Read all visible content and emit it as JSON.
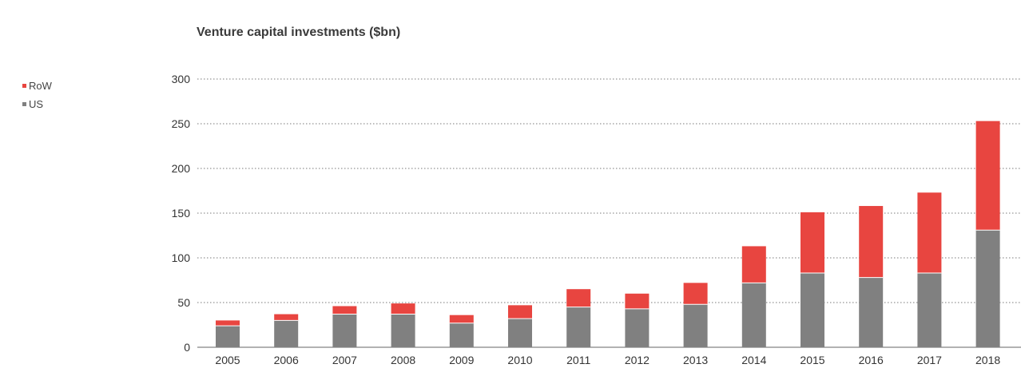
{
  "chart_data": {
    "type": "bar",
    "stacked": true,
    "title": "Venture capital investments ($bn)",
    "xlabel": "",
    "ylabel": "",
    "categories": [
      "2005",
      "2006",
      "2007",
      "2008",
      "2009",
      "2010",
      "2011",
      "2012",
      "2013",
      "2014",
      "2015",
      "2016",
      "2017",
      "2018"
    ],
    "series": [
      {
        "name": "US",
        "color": "#808080",
        "values": [
          24,
          30,
          37,
          37,
          27,
          32,
          45,
          43,
          48,
          72,
          83,
          78,
          83,
          131
        ]
      },
      {
        "name": "RoW",
        "color": "#e84540",
        "values": [
          6,
          7,
          9,
          12,
          9,
          15,
          20,
          17,
          24,
          41,
          68,
          80,
          90,
          122
        ]
      }
    ],
    "ylim": [
      0,
      300
    ],
    "yticks": [
      "0",
      "50",
      "100",
      "150",
      "200",
      "250",
      "300"
    ],
    "grid": true,
    "legend_position": "top-left"
  },
  "legend": {
    "items": [
      {
        "label": "RoW",
        "color": "#e84540"
      },
      {
        "label": "US",
        "color": "#808080"
      }
    ]
  }
}
